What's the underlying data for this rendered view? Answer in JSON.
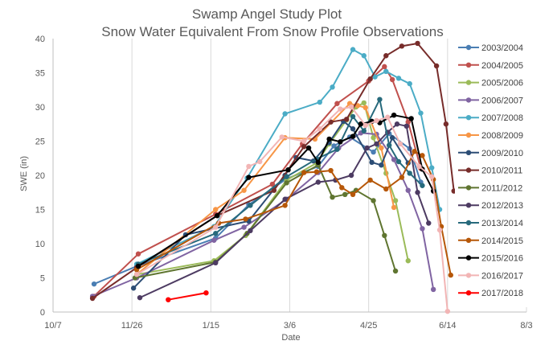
{
  "chart_data": {
    "type": "line",
    "title": [
      "Swamp Angel Study Plot",
      "Snow Water Equivalent From Snow Profile Observations"
    ],
    "xlabel": "Date",
    "ylabel": "SWE (in)",
    "x_ticks": [
      "10/7",
      "11/26",
      "1/15",
      "3/6",
      "4/25",
      "6/14",
      "8/3"
    ],
    "x_tick_days": [
      7,
      57,
      107,
      157,
      207,
      257,
      307
    ],
    "x_unit": "days since Oct 1 of water year",
    "xlim": [
      7,
      307
    ],
    "ylim": [
      0,
      40
    ],
    "y_ticks": [
      0,
      5,
      10,
      15,
      20,
      25,
      30,
      35,
      40
    ],
    "grid": "vertical",
    "legend": "right",
    "series": [
      {
        "name": "2003/2004",
        "color": "#4a7eb3",
        "points": [
          [
            33,
            4.1
          ],
          [
            60,
            6.7
          ],
          [
            110,
            10.8
          ],
          [
            131,
            15.7
          ],
          [
            155,
            19.5
          ],
          [
            175,
            21.3
          ],
          [
            185,
            24.3
          ],
          [
            195,
            25.6
          ],
          [
            210,
            23.4
          ],
          [
            220,
            26.1
          ],
          [
            233,
            23.9
          ],
          [
            240,
            19.0
          ]
        ]
      },
      {
        "name": "2004/2005",
        "color": "#c0504d",
        "points": [
          [
            33,
            2.3
          ],
          [
            61,
            8.5
          ],
          [
            110,
            14.3
          ],
          [
            146,
            18.7
          ],
          [
            165,
            24.6
          ],
          [
            187,
            30.5
          ],
          [
            207,
            33.8
          ],
          [
            217,
            35.9
          ],
          [
            222,
            34.0
          ],
          [
            232,
            27.8
          ],
          [
            240,
            21.0
          ]
        ]
      },
      {
        "name": "2005/2006",
        "color": "#9bbb59",
        "points": [
          [
            60,
            5.5
          ],
          [
            109,
            7.5
          ],
          [
            129,
            11.2
          ],
          [
            155,
            19.3
          ],
          [
            174,
            21.8
          ],
          [
            182,
            24.6
          ],
          [
            193,
            28.1
          ],
          [
            199,
            30.0
          ],
          [
            204,
            30.6
          ],
          [
            210,
            25.5
          ],
          [
            218,
            20.3
          ],
          [
            224,
            16.3
          ],
          [
            232,
            7.5
          ]
        ]
      },
      {
        "name": "2006/2007",
        "color": "#8064a2",
        "points": [
          [
            32,
            2.3
          ],
          [
            60,
            5.0
          ],
          [
            109,
            10.5
          ],
          [
            128,
            12.4
          ],
          [
            155,
            16.5
          ],
          [
            175,
            20.4
          ],
          [
            188,
            24.0
          ],
          [
            202,
            26.2
          ],
          [
            212,
            26.0
          ],
          [
            223,
            22.3
          ],
          [
            232,
            17.8
          ],
          [
            241,
            12.2
          ],
          [
            248,
            3.3
          ]
        ]
      },
      {
        "name": "2007/2008",
        "color": "#4bacc6",
        "points": [
          [
            60,
            7.0
          ],
          [
            109,
            12.5
          ],
          [
            130,
            19.6
          ],
          [
            154,
            29.0
          ],
          [
            176,
            30.7
          ],
          [
            184,
            32.9
          ],
          [
            197,
            38.4
          ],
          [
            204,
            37.5
          ],
          [
            211,
            34.4
          ],
          [
            218,
            35.2
          ],
          [
            226,
            34.2
          ],
          [
            233,
            33.4
          ],
          [
            240,
            29.1
          ],
          [
            247,
            21.1
          ],
          [
            252,
            15.0
          ]
        ]
      },
      {
        "name": "2008/2009",
        "color": "#f79646",
        "points": [
          [
            60,
            5.5
          ],
          [
            110,
            15.0
          ],
          [
            128,
            17.8
          ],
          [
            154,
            25.5
          ],
          [
            173,
            25.3
          ],
          [
            195,
            30.5
          ],
          [
            200,
            30.2
          ],
          [
            205,
            29.9
          ],
          [
            215,
            24.0
          ],
          [
            223,
            15.3
          ]
        ]
      },
      {
        "name": "2009/2010",
        "color": "#2c4d75",
        "points": [
          [
            58,
            3.5
          ],
          [
            91,
            11.3
          ],
          [
            131,
            13.3
          ],
          [
            154,
            20.0
          ],
          [
            161,
            22.6
          ],
          [
            172,
            22.1
          ],
          [
            182,
            24.8
          ],
          [
            191,
            27.9
          ],
          [
            197,
            26.8
          ],
          [
            209,
            21.9
          ],
          [
            215,
            21.5
          ],
          [
            222,
            25.5
          ],
          [
            232,
            21.8
          ]
        ]
      },
      {
        "name": "2010/2011",
        "color": "#772c2a",
        "points": [
          [
            32,
            2.0
          ],
          [
            60,
            6.5
          ],
          [
            111,
            14.1
          ],
          [
            147,
            17.8
          ],
          [
            166,
            24.2
          ],
          [
            183,
            27.8
          ],
          [
            193,
            28.2
          ],
          [
            208,
            34.1
          ],
          [
            218,
            37.5
          ],
          [
            228,
            38.9
          ],
          [
            238,
            39.3
          ],
          [
            250,
            36.0
          ],
          [
            256,
            27.5
          ],
          [
            261,
            17.7
          ]
        ]
      },
      {
        "name": "2011/2012",
        "color": "#5f7530",
        "points": [
          [
            59,
            5.0
          ],
          [
            110,
            7.3
          ],
          [
            130,
            11.5
          ],
          [
            155,
            18.9
          ],
          [
            175,
            21.5
          ],
          [
            184,
            16.8
          ],
          [
            192,
            17.2
          ],
          [
            199,
            17.8
          ],
          [
            210,
            16.3
          ],
          [
            217,
            11.2
          ],
          [
            224,
            6.0
          ]
        ]
      },
      {
        "name": "2012/2013",
        "color": "#4d3b62",
        "points": [
          [
            62,
            2.1
          ],
          [
            110,
            7.2
          ],
          [
            132,
            11.9
          ],
          [
            154,
            16.5
          ],
          [
            175,
            19.0
          ],
          [
            186,
            19.3
          ],
          [
            196,
            20.0
          ],
          [
            206,
            24.0
          ],
          [
            212,
            24.6
          ],
          [
            219,
            26.3
          ],
          [
            225,
            27.5
          ],
          [
            231,
            27.2
          ],
          [
            238,
            17.5
          ],
          [
            245,
            13.0
          ]
        ]
      },
      {
        "name": "2013/2014",
        "color": "#276a7c",
        "points": [
          [
            61,
            7.0
          ],
          [
            110,
            11.5
          ],
          [
            132,
            15.6
          ],
          [
            155,
            19.8
          ],
          [
            174,
            22.4
          ],
          [
            187,
            23.8
          ],
          [
            197,
            28.6
          ],
          [
            204,
            26.5
          ],
          [
            214,
            31.1
          ],
          [
            220,
            24.4
          ],
          [
            226,
            22.0
          ],
          [
            233,
            20.3
          ],
          [
            241,
            18.5
          ]
        ]
      },
      {
        "name": "2014/2015",
        "color": "#b65708",
        "points": [
          [
            60,
            6.2
          ],
          [
            112,
            13.0
          ],
          [
            129,
            13.6
          ],
          [
            154,
            15.6
          ],
          [
            166,
            20.4
          ],
          [
            174,
            20.5
          ],
          [
            183,
            20.7
          ],
          [
            190,
            18.2
          ],
          [
            197,
            17.2
          ],
          [
            208,
            19.3
          ],
          [
            218,
            18.0
          ],
          [
            228,
            19.7
          ],
          [
            236,
            23.5
          ],
          [
            241,
            22.9
          ],
          [
            248,
            19.4
          ],
          [
            253,
            12.5
          ],
          [
            259,
            5.4
          ]
        ]
      },
      {
        "name": "2015/2016",
        "color": "#000000",
        "points": [
          [
            61,
            6.7
          ],
          [
            111,
            14.1
          ],
          [
            131,
            19.7
          ],
          [
            156,
            20.8
          ],
          [
            169,
            24.0
          ],
          [
            175,
            21.9
          ],
          [
            182,
            25.3
          ],
          [
            189,
            24.9
          ],
          [
            197,
            25.7
          ],
          [
            202,
            27.5
          ],
          [
            209,
            27.9
          ],
          [
            214,
            27.7
          ],
          [
            223,
            28.8
          ],
          [
            234,
            28.3
          ],
          [
            241,
            20.9
          ],
          [
            248,
            17.7
          ]
        ]
      },
      {
        "name": "2016/2017",
        "color": "#f2b5b5",
        "points": [
          [
            60,
            5.5
          ],
          [
            110,
            12.4
          ],
          [
            131,
            21.3
          ],
          [
            138,
            22.0
          ],
          [
            152,
            25.6
          ],
          [
            166,
            25.0
          ],
          [
            176,
            26.8
          ],
          [
            189,
            29.7
          ],
          [
            196,
            30.0
          ],
          [
            205,
            27.3
          ],
          [
            212,
            28.0
          ],
          [
            219,
            28.5
          ],
          [
            227,
            24.6
          ],
          [
            239,
            21.3
          ],
          [
            247,
            19.8
          ],
          [
            252,
            12.0
          ],
          [
            257,
            0.1
          ]
        ]
      },
      {
        "name": "2017/2018",
        "color": "#ff0000",
        "points": [
          [
            80,
            1.8
          ],
          [
            104,
            2.8
          ]
        ]
      }
    ]
  }
}
